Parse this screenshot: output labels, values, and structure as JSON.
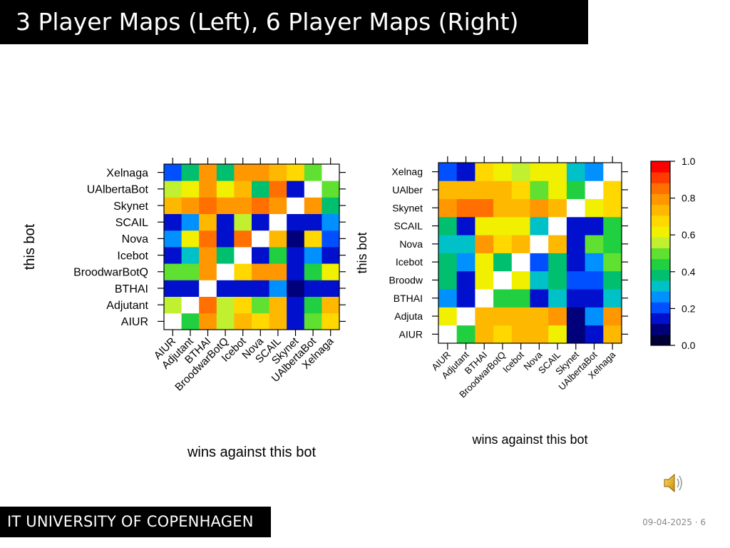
{
  "slide": {
    "title": "3 Player Maps (Left), 6 Player Maps (Right)",
    "footer": "IT UNIVERSITY OF COPENHAGEN",
    "date": "09-04-2025",
    "page": "6",
    "page_sep": "·"
  },
  "icons": {
    "audio": "speaker-icon"
  },
  "colorbar": {
    "ticks": [
      0.0,
      0.2,
      0.4,
      0.6,
      0.8,
      1.0
    ],
    "tick_labels": [
      "0.0",
      "0.2",
      "0.4",
      "0.6",
      "0.8",
      "1.0"
    ],
    "colors": [
      "#000036",
      "#00007a",
      "#0010cc",
      "#0050ff",
      "#0090ff",
      "#00c0c8",
      "#00c070",
      "#20d040",
      "#60e030",
      "#c0f030",
      "#f0f000",
      "#ffd800",
      "#ffb800",
      "#ff9800",
      "#ff7000",
      "#ff3c00",
      "#ff0000"
    ]
  },
  "chart_data": [
    {
      "type": "heatmap",
      "xlabel": "wins against this bot",
      "ylabel": "this bot",
      "x_categories": [
        "AIUR",
        "Adjutant",
        "BTHAI",
        "BroodwarBotQ",
        "Icebot",
        "Nova",
        "SCAIL",
        "Skynet",
        "UAlbertaBot",
        "Xelnaga"
      ],
      "y_categories": [
        "AIUR",
        "Adjutant",
        "BTHAI",
        "BroodwarBotQ",
        "Icebot",
        "Nova",
        "SCAIL",
        "Skynet",
        "UAlbertaBot",
        "Xelnaga"
      ],
      "y_tick_labels": [
        "AIUR",
        "Adjutant",
        "BTHAI",
        "BroodwarBotQ",
        "Icebot",
        "Nova",
        "SCAIL",
        "Skynet",
        "UAlbertaBot",
        "Xelnaga"
      ],
      "value_range": [
        0,
        1
      ],
      "values": [
        [
          null,
          0.45,
          0.8,
          0.55,
          0.78,
          0.7,
          0.72,
          0.15,
          0.5,
          0.7
        ],
        [
          0.55,
          null,
          0.85,
          0.55,
          0.7,
          0.5,
          0.72,
          0.15,
          0.45,
          0.72
        ],
        [
          0.15,
          0.1,
          null,
          0.15,
          0.15,
          0.1,
          0.25,
          0.05,
          0.15,
          0.15
        ],
        [
          0.5,
          0.5,
          0.8,
          null,
          0.7,
          0.8,
          0.8,
          0.15,
          0.45,
          0.65
        ],
        [
          0.15,
          0.3,
          0.8,
          0.35,
          null,
          0.1,
          0.45,
          0.15,
          0.25,
          0.15
        ],
        [
          0.25,
          0.6,
          0.85,
          0.15,
          0.85,
          null,
          0.75,
          0.05,
          0.7,
          0.2
        ],
        [
          0.15,
          0.25,
          0.75,
          0.15,
          0.55,
          0.15,
          null,
          0.15,
          0.15,
          0.25
        ],
        [
          0.75,
          0.8,
          0.9,
          0.8,
          0.8,
          0.85,
          0.8,
          null,
          0.8,
          0.4
        ],
        [
          0.55,
          0.6,
          0.8,
          0.6,
          0.75,
          0.35,
          0.85,
          0.15,
          null,
          0.5
        ],
        [
          0.2,
          0.35,
          0.8,
          0.35,
          0.8,
          0.8,
          0.75,
          0.7,
          0.5,
          null
        ]
      ]
    },
    {
      "type": "heatmap",
      "xlabel": "wins against this bot",
      "ylabel": "this bot",
      "x_categories": [
        "AIUR",
        "Adjutant",
        "BTHAI",
        "BroodwarBotQ",
        "Icebot",
        "Nova",
        "SCAIL",
        "Skynet",
        "UAlbertaBot",
        "Xelnaga"
      ],
      "y_categories": [
        "AIUR",
        "Adjutant",
        "BTHAI",
        "BroodwarBotQ",
        "Icebot",
        "Nova",
        "SCAIL",
        "Skynet",
        "UAlbertaBot",
        "Xelnaga"
      ],
      "y_tick_labels": [
        "AIUR",
        "Adjuta",
        "BTHAI",
        "Broodw",
        "Icebot",
        "Nova",
        "SCAIL",
        "Skynet",
        "UAlber",
        "Xelnag"
      ],
      "value_range": [
        0,
        1
      ],
      "values": [
        [
          null,
          0.45,
          0.75,
          0.7,
          0.72,
          0.72,
          0.6,
          0.05,
          0.1,
          0.75
        ],
        [
          0.6,
          null,
          0.75,
          0.75,
          0.72,
          0.72,
          0.8,
          0.05,
          0.25,
          0.8
        ],
        [
          0.25,
          0.1,
          null,
          0.45,
          0.45,
          0.1,
          0.3,
          0.1,
          0.15,
          0.3
        ],
        [
          0.35,
          0.1,
          0.6,
          null,
          0.6,
          0.3,
          0.4,
          0.2,
          0.2,
          0.4
        ],
        [
          0.35,
          0.25,
          0.65,
          0.4,
          null,
          0.2,
          0.4,
          0.1,
          0.25,
          0.5
        ],
        [
          0.3,
          0.3,
          0.8,
          0.7,
          0.72,
          null,
          0.72,
          0.1,
          0.5,
          0.45
        ],
        [
          0.35,
          0.1,
          0.6,
          0.6,
          0.6,
          0.3,
          null,
          0.1,
          0.1,
          0.45
        ],
        [
          0.8,
          0.85,
          0.85,
          0.75,
          0.75,
          0.8,
          0.72,
          null,
          0.6,
          0.7
        ],
        [
          0.75,
          0.72,
          0.75,
          0.75,
          0.7,
          0.5,
          0.65,
          0.45,
          null,
          0.7
        ],
        [
          0.2,
          0.1,
          0.7,
          0.6,
          0.55,
          0.6,
          0.6,
          0.3,
          0.25,
          null
        ]
      ]
    }
  ]
}
